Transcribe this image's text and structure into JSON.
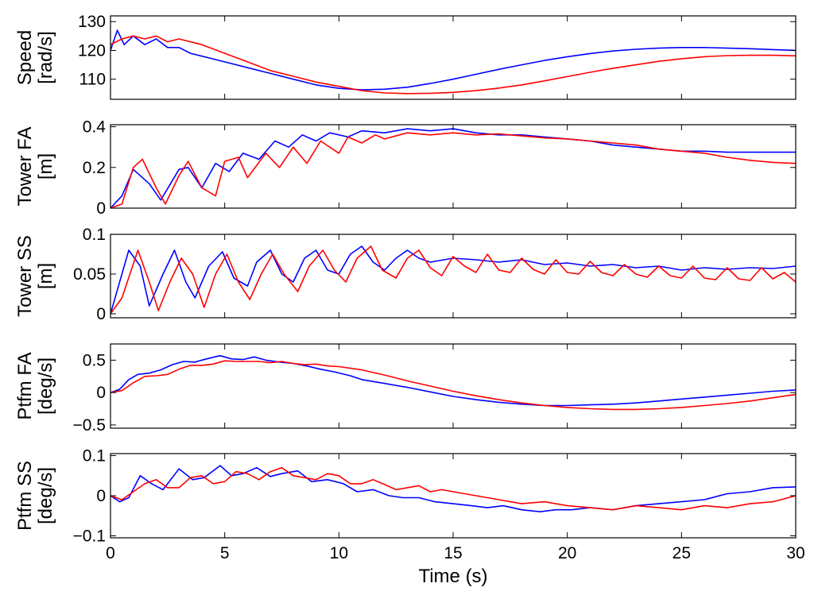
{
  "chart_data": {
    "type": "line",
    "layout": "stacked-subplots",
    "shared_x": true,
    "xlabel": "Time (s)",
    "xlim": [
      0,
      30
    ],
    "xticks": [
      0,
      5,
      10,
      15,
      20,
      25,
      30
    ],
    "xtick_labels": [
      "0",
      "5",
      "10",
      "15",
      "20",
      "25",
      "30"
    ],
    "series_colors": [
      "#0000ff",
      "#ff0000"
    ],
    "subplots": [
      {
        "ylabel": [
          "Speed",
          "[rad/s]"
        ],
        "ylim": [
          103,
          132
        ],
        "yticks": [
          110,
          120,
          130
        ],
        "ytick_labels": [
          "110",
          "120",
          "130"
        ],
        "series": [
          {
            "color": "#0000ff",
            "x": [
              0,
              0.3,
              0.6,
              1,
              1.5,
              2,
              2.5,
              3,
              3.5,
              4,
              5,
              6,
              7,
              8,
              9,
              10,
              11,
              12,
              13,
              14,
              15,
              16,
              17,
              18,
              19,
              20,
              21,
              22,
              23,
              24,
              25,
              26,
              27,
              28,
              29,
              30
            ],
            "y": [
              120,
              127,
              122,
              125,
              122,
              124,
              121,
              121,
              119,
              118,
              116,
              114,
              112,
              110,
              108,
              106.8,
              106.3,
              106.5,
              107.2,
              108.5,
              110,
              111.7,
              113.4,
              115,
              116.5,
              117.8,
              118.9,
              119.8,
              120.4,
              120.8,
              121,
              121,
              120.8,
              120.6,
              120.3,
              120
            ]
          },
          {
            "color": "#ff0000",
            "x": [
              0,
              0.5,
              1,
              1.5,
              2,
              2.5,
              3,
              4,
              5,
              6,
              7,
              8,
              9,
              10,
              11,
              12,
              13,
              14,
              15,
              16,
              17,
              18,
              19,
              20,
              21,
              22,
              23,
              24,
              25,
              26,
              27,
              28,
              29,
              30
            ],
            "y": [
              122,
              124,
              125,
              124,
              125,
              123,
              124,
              122,
              119,
              116,
              113,
              111,
              109,
              107.5,
              106,
              105.2,
              105,
              105.1,
              105.4,
              106,
              106.9,
              108,
              109.4,
              110.9,
              112.4,
              113.8,
              115,
              116.2,
              117.1,
              117.8,
              118.2,
              118.3,
              118.3,
              118.1
            ]
          }
        ]
      },
      {
        "ylabel": [
          "Tower FA",
          "[m]"
        ],
        "ylim": [
          0,
          0.41
        ],
        "yticks": [
          0,
          0.2,
          0.4
        ],
        "ytick_labels": [
          "0",
          "0.2",
          "0.4"
        ],
        "series": [
          {
            "color": "#0000ff",
            "x": [
              0,
              0.5,
              1,
              1.7,
              2.2,
              3,
              3.4,
              4,
              4.6,
              5.2,
              5.8,
              6.5,
              7.2,
              7.8,
              8.4,
              9,
              9.6,
              10.4,
              11,
              12,
              13,
              14,
              15,
              16,
              17,
              18,
              19,
              20,
              21,
              22,
              23,
              24,
              25,
              26,
              27,
              28,
              29,
              30
            ],
            "y": [
              0,
              0.06,
              0.19,
              0.12,
              0.04,
              0.19,
              0.2,
              0.1,
              0.22,
              0.18,
              0.27,
              0.24,
              0.33,
              0.3,
              0.36,
              0.33,
              0.37,
              0.35,
              0.38,
              0.37,
              0.39,
              0.38,
              0.39,
              0.37,
              0.36,
              0.36,
              0.35,
              0.34,
              0.33,
              0.31,
              0.3,
              0.29,
              0.28,
              0.28,
              0.275,
              0.275,
              0.275,
              0.275
            ]
          },
          {
            "color": "#ff0000",
            "x": [
              0,
              0.5,
              1,
              1.4,
              2,
              2.4,
              3,
              3.4,
              4,
              4.6,
              5,
              5.6,
              6,
              6.8,
              7.4,
              8,
              8.6,
              9.2,
              10,
              10.4,
              11,
              11.6,
              12,
              13,
              14,
              15,
              16,
              17,
              18,
              19,
              20,
              21,
              22,
              23,
              24,
              25,
              26,
              27,
              28,
              29,
              30
            ],
            "y": [
              0,
              0.02,
              0.2,
              0.24,
              0.1,
              0.02,
              0.16,
              0.23,
              0.1,
              0.06,
              0.23,
              0.25,
              0.15,
              0.27,
              0.2,
              0.3,
              0.22,
              0.33,
              0.27,
              0.35,
              0.32,
              0.36,
              0.34,
              0.37,
              0.36,
              0.37,
              0.36,
              0.365,
              0.355,
              0.345,
              0.34,
              0.33,
              0.32,
              0.31,
              0.29,
              0.28,
              0.27,
              0.25,
              0.235,
              0.225,
              0.22
            ]
          }
        ]
      },
      {
        "ylabel": [
          "Tower SS",
          "[m]"
        ],
        "ylim": [
          -0.005,
          0.1
        ],
        "yticks": [
          0,
          0.05,
          0.1
        ],
        "ytick_labels": [
          "0",
          "0.05",
          "0.1"
        ],
        "series": [
          {
            "color": "#0000ff",
            "x": [
              0,
              0.4,
              0.8,
              1.3,
              1.7,
              2.3,
              2.8,
              3.3,
              3.7,
              4.3,
              4.9,
              5.4,
              6,
              6.4,
              7,
              7.5,
              8,
              8.5,
              9,
              9.5,
              10,
              10.5,
              11,
              11.5,
              12,
              12.5,
              13,
              13.5,
              14,
              15,
              16,
              17,
              18,
              19,
              20,
              21,
              22,
              23,
              24,
              25,
              26,
              27,
              28,
              29,
              30
            ],
            "y": [
              0,
              0.04,
              0.08,
              0.06,
              0.01,
              0.05,
              0.08,
              0.04,
              0.02,
              0.06,
              0.078,
              0.045,
              0.035,
              0.065,
              0.08,
              0.05,
              0.04,
              0.07,
              0.08,
              0.055,
              0.05,
              0.075,
              0.085,
              0.065,
              0.055,
              0.07,
              0.08,
              0.07,
              0.065,
              0.07,
              0.068,
              0.065,
              0.068,
              0.062,
              0.064,
              0.06,
              0.062,
              0.058,
              0.06,
              0.055,
              0.058,
              0.056,
              0.058,
              0.057,
              0.06
            ]
          },
          {
            "color": "#ff0000",
            "x": [
              0,
              0.5,
              1.2,
              1.7,
              2.1,
              2.6,
              3.1,
              3.6,
              4.1,
              4.6,
              5.1,
              5.6,
              6.1,
              6.6,
              7.1,
              7.6,
              8.2,
              8.7,
              9.3,
              9.8,
              10.3,
              10.8,
              11.4,
              11.9,
              12.5,
              13,
              13.5,
              14,
              14.5,
              15,
              15.5,
              16,
              16.5,
              17,
              17.5,
              18,
              18.5,
              19,
              19.5,
              20,
              20.5,
              21,
              21.5,
              22,
              22.5,
              23,
              23.5,
              24,
              24.5,
              25,
              25.5,
              26,
              26.5,
              27,
              27.5,
              28,
              28.5,
              29,
              29.5,
              30
            ],
            "y": [
              0,
              0.02,
              0.08,
              0.04,
              0.004,
              0.04,
              0.07,
              0.05,
              0.008,
              0.05,
              0.075,
              0.04,
              0.018,
              0.05,
              0.075,
              0.05,
              0.028,
              0.06,
              0.08,
              0.055,
              0.04,
              0.07,
              0.085,
              0.055,
              0.045,
              0.07,
              0.08,
              0.058,
              0.048,
              0.072,
              0.06,
              0.052,
              0.075,
              0.055,
              0.052,
              0.07,
              0.056,
              0.05,
              0.068,
              0.052,
              0.05,
              0.066,
              0.052,
              0.048,
              0.062,
              0.05,
              0.046,
              0.06,
              0.048,
              0.045,
              0.06,
              0.045,
              0.043,
              0.058,
              0.044,
              0.042,
              0.058,
              0.044,
              0.052,
              0.04
            ]
          }
        ]
      },
      {
        "ylabel": [
          "Ptfm FA",
          "[deg/s]"
        ],
        "ylim": [
          -0.55,
          0.75
        ],
        "yticks": [
          -0.5,
          0,
          0.5
        ],
        "ytick_labels": [
          "−0.5",
          "0",
          "0.5"
        ],
        "series": [
          {
            "color": "#0000ff",
            "x": [
              0,
              0.4,
              0.8,
              1.2,
              1.7,
              2.2,
              2.7,
              3.2,
              3.7,
              4.2,
              4.8,
              5.3,
              5.8,
              6.3,
              6.8,
              7.4,
              8,
              8.6,
              9.2,
              9.8,
              10.5,
              11,
              12,
              13,
              14,
              15,
              16,
              17,
              18,
              19,
              20,
              21,
              22,
              23,
              24,
              25,
              26,
              27,
              28,
              29,
              30
            ],
            "y": [
              0,
              0.05,
              0.2,
              0.28,
              0.3,
              0.35,
              0.43,
              0.48,
              0.47,
              0.52,
              0.57,
              0.52,
              0.51,
              0.55,
              0.5,
              0.47,
              0.45,
              0.41,
              0.36,
              0.32,
              0.26,
              0.2,
              0.14,
              0.08,
              0.01,
              -0.06,
              -0.11,
              -0.15,
              -0.18,
              -0.2,
              -0.2,
              -0.19,
              -0.18,
              -0.16,
              -0.13,
              -0.1,
              -0.07,
              -0.04,
              -0.01,
              0.02,
              0.04
            ]
          },
          {
            "color": "#ff0000",
            "x": [
              0,
              0.5,
              1,
              1.5,
              2,
              2.5,
              3,
              3.5,
              4,
              4.5,
              5,
              5.5,
              6,
              6.5,
              7,
              7.5,
              8,
              8.5,
              9,
              9.5,
              10,
              11,
              12,
              13,
              14,
              15,
              16,
              17,
              18,
              19,
              20,
              21,
              22,
              23,
              24,
              25,
              26,
              27,
              28,
              29,
              30
            ],
            "y": [
              0,
              0.03,
              0.15,
              0.25,
              0.26,
              0.28,
              0.36,
              0.42,
              0.42,
              0.44,
              0.49,
              0.48,
              0.48,
              0.48,
              0.46,
              0.48,
              0.45,
              0.43,
              0.44,
              0.41,
              0.4,
              0.35,
              0.27,
              0.18,
              0.1,
              0.02,
              -0.05,
              -0.11,
              -0.16,
              -0.2,
              -0.23,
              -0.25,
              -0.26,
              -0.26,
              -0.25,
              -0.23,
              -0.2,
              -0.17,
              -0.13,
              -0.08,
              -0.03
            ]
          }
        ]
      },
      {
        "ylabel": [
          "Ptfm SS",
          "[deg/s]"
        ],
        "ylim": [
          -0.105,
          0.105
        ],
        "yticks": [
          -0.1,
          0,
          0.1
        ],
        "ytick_labels": [
          "−0.1",
          "0",
          "0.1"
        ],
        "series": [
          {
            "color": "#0000ff",
            "x": [
              0,
              0.4,
              0.8,
              1.3,
              1.8,
              2.3,
              3,
              3.6,
              4.1,
              4.8,
              5.3,
              5.8,
              6.4,
              7,
              7.5,
              8.2,
              8.8,
              9.5,
              10.2,
              10.8,
              11.5,
              12.2,
              12.8,
              13.5,
              14.2,
              15,
              15.8,
              16.5,
              17.2,
              18,
              18.8,
              19.5,
              20.2,
              21,
              22,
              23,
              24,
              25,
              26,
              27,
              28,
              29,
              30
            ],
            "y": [
              0,
              -0.015,
              -0.005,
              0.05,
              0.03,
              0.015,
              0.067,
              0.04,
              0.045,
              0.075,
              0.05,
              0.055,
              0.07,
              0.048,
              0.055,
              0.062,
              0.035,
              0.04,
              0.03,
              0.01,
              0.015,
              0,
              -0.005,
              -0.005,
              -0.015,
              -0.02,
              -0.025,
              -0.03,
              -0.025,
              -0.035,
              -0.04,
              -0.035,
              -0.035,
              -0.03,
              -0.035,
              -0.025,
              -0.02,
              -0.015,
              -0.01,
              0.005,
              0.01,
              0.02,
              0.022
            ]
          },
          {
            "color": "#ff0000",
            "x": [
              0,
              0.5,
              1,
              1.5,
              2,
              2.5,
              3,
              3.5,
              4,
              4.5,
              5,
              5.5,
              6,
              6.5,
              7,
              7.5,
              8,
              8.5,
              9,
              9.5,
              10,
              10.5,
              11,
              11.5,
              12,
              12.5,
              13,
              13.5,
              14,
              14.5,
              15,
              16,
              17,
              18,
              19,
              20,
              21,
              22,
              23,
              24,
              25,
              26,
              27,
              28,
              29,
              30
            ],
            "y": [
              0,
              -0.01,
              0.01,
              0.03,
              0.04,
              0.02,
              0.02,
              0.045,
              0.05,
              0.03,
              0.035,
              0.06,
              0.055,
              0.04,
              0.06,
              0.07,
              0.05,
              0.045,
              0.04,
              0.055,
              0.05,
              0.03,
              0.03,
              0.04,
              0.028,
              0.015,
              0.02,
              0.025,
              0.01,
              0.015,
              0.01,
              0,
              -0.01,
              -0.02,
              -0.015,
              -0.025,
              -0.03,
              -0.035,
              -0.025,
              -0.03,
              -0.035,
              -0.025,
              -0.03,
              -0.02,
              -0.015,
              0
            ]
          }
        ]
      }
    ]
  }
}
